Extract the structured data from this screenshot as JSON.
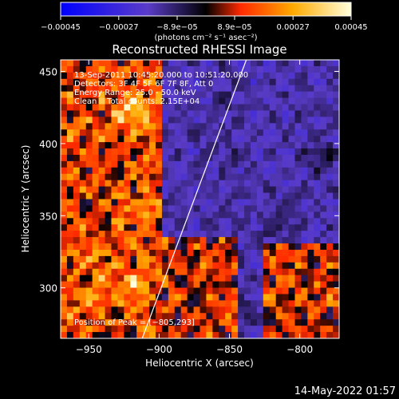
{
  "chart_data": {
    "type": "heatmap",
    "title": "Reconstructed RHESSI Image",
    "xlabel": "Heliocentric X (arcsec)",
    "ylabel": "Heliocentric Y (arcsec)",
    "xlim": [
      -970,
      -772
    ],
    "ylim": [
      265,
      458
    ],
    "x_ticks": [
      -950,
      -900,
      -850,
      -800
    ],
    "x_tick_labels": [
      "−950",
      "−900",
      "−850",
      "−800"
    ],
    "y_ticks": [
      300,
      350,
      400,
      450
    ],
    "y_tick_labels": [
      "300",
      "350",
      "400",
      "450"
    ],
    "colorbar": {
      "min": -0.00045,
      "max": 0.00045,
      "ticks": [
        -0.00045,
        -0.00027,
        -8.9e-05,
        8.9e-05,
        0.00027,
        0.00045
      ],
      "tick_labels": [
        "−0.00045",
        "−0.00027",
        "−8.9e−05",
        "8.9e−05",
        "0.00027",
        "0.00045"
      ],
      "unit_label": "(photons cm⁻² s⁻¹ asec⁻²)",
      "colors": [
        "#0000ff",
        "#5a3cc8",
        "#000000",
        "#ff2a00",
        "#ffaa00",
        "#ffffdd"
      ]
    },
    "annotations": [
      "13-Sep-2011 10:45:20.000 to 10:51:20.000",
      "Detectors: 3F 4F 5F 6F 7F 8F, Att 0",
      "Energy Range: 25.0 - 50.0 keV",
      "Clean    Total counts: 2.15E+04"
    ],
    "peak_label": "Position of Peak = [−805,293]",
    "peak_position": [
      -805,
      293
    ],
    "limb_line": [
      [
        -912,
        265
      ],
      [
        -838,
        458
      ]
    ],
    "grid": false
  },
  "footer": {
    "timestamp": "14-May-2022 01:57"
  }
}
